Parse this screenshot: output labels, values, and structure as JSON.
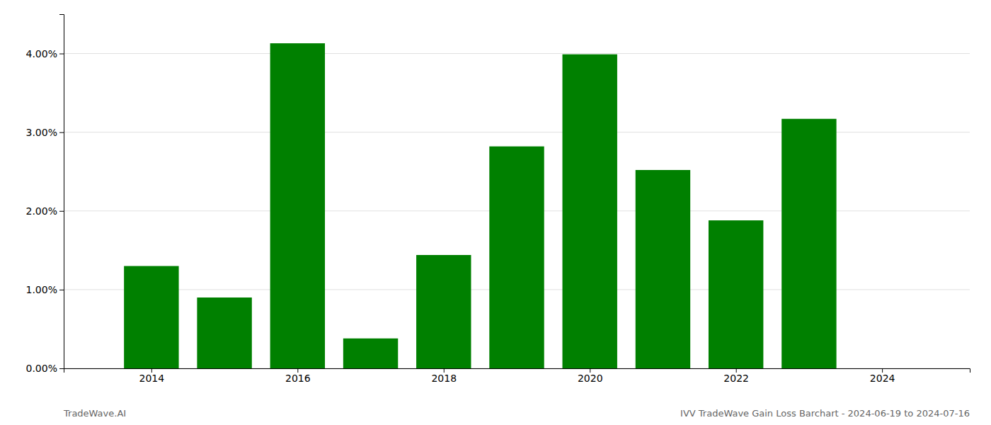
{
  "chart_data": {
    "type": "bar",
    "x": [
      2014,
      2015,
      2016,
      2017,
      2018,
      2019,
      2020,
      2021,
      2022,
      2023
    ],
    "values": [
      0.013,
      0.009,
      0.0413,
      0.0038,
      0.0144,
      0.0282,
      0.0399,
      0.0252,
      0.0188,
      0.0317
    ],
    "color": "#008000",
    "xlim": [
      2012.8,
      2025.2
    ],
    "xticks": [
      2014,
      2016,
      2018,
      2020,
      2022,
      2024
    ],
    "ylim": [
      0,
      0.045
    ],
    "yticks": [
      {
        "value": 0.0,
        "label": "0.00%"
      },
      {
        "value": 0.01,
        "label": "1.00%"
      },
      {
        "value": 0.02,
        "label": "2.00%"
      },
      {
        "value": 0.03,
        "label": "3.00%"
      },
      {
        "value": 0.04,
        "label": "4.00%"
      }
    ],
    "grid": true,
    "annotations": [
      "TradeWave.AI",
      "IVV TradeWave Gain Loss Barchart - 2024-06-19 to 2024-07-16"
    ]
  }
}
